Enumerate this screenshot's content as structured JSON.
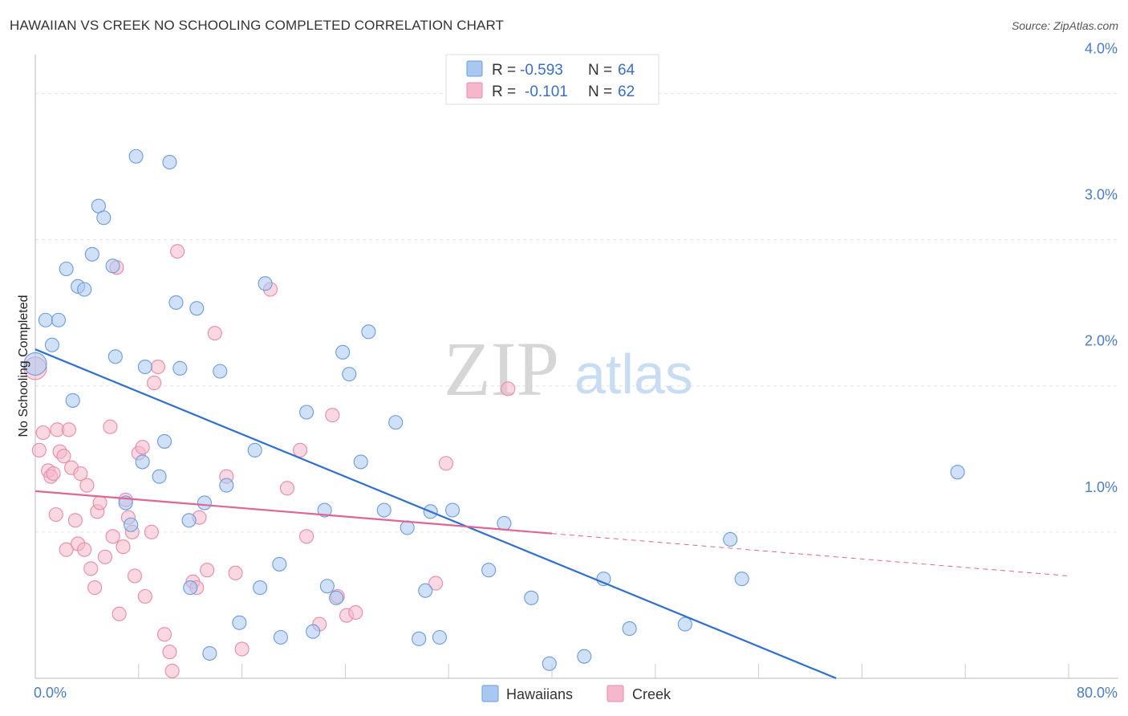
{
  "header": {
    "title": "HAWAIIAN VS CREEK NO SCHOOLING COMPLETED CORRELATION CHART",
    "source": "Source: ZipAtlas.com"
  },
  "watermark": {
    "zip": "ZIP",
    "atlas": "atlas"
  },
  "legend": {
    "rows": [
      {
        "r_label": "R =",
        "r_value": "-0.593",
        "n_label": "N =",
        "n_value": "64",
        "color": "#a9c8f0"
      },
      {
        "r_label": "R =",
        "r_value": "-0.101",
        "n_label": "N =",
        "n_value": "62",
        "color": "#f5b8cb"
      }
    ]
  },
  "bottom_legend": [
    {
      "label": "Hawaiians",
      "color": "#a9c8f0"
    },
    {
      "label": "Creek",
      "color": "#f5b8cb"
    }
  ],
  "chart_data": {
    "type": "scatter",
    "title": "HAWAIIAN VS CREEK NO SCHOOLING COMPLETED CORRELATION CHART",
    "xlabel": "",
    "ylabel": "No Schooling Completed",
    "xlim": [
      0,
      80
    ],
    "ylim": [
      0,
      4.2
    ],
    "x_tick_labels": [
      "0.0%",
      "80.0%"
    ],
    "y_ticks": [
      1.0,
      2.0,
      3.0,
      4.0
    ],
    "y_tick_labels": [
      "1.0%",
      "2.0%",
      "3.0%",
      "4.0%"
    ],
    "grid": "horizontal dashed",
    "legend_position": "top-center",
    "series": [
      {
        "name": "Hawaiians",
        "color": "#6a9be0",
        "fill": "#a9c8f0",
        "trend": {
          "x": [
            0,
            62.0
          ],
          "y": [
            2.25,
            0.0
          ],
          "style": "solid",
          "color": "#2e6fd0"
        },
        "points": [
          [
            0.0,
            2.15
          ],
          [
            0.8,
            2.45
          ],
          [
            1.8,
            2.45
          ],
          [
            1.3,
            2.28
          ],
          [
            2.4,
            2.8
          ],
          [
            3.3,
            2.68
          ],
          [
            3.8,
            2.66
          ],
          [
            4.4,
            2.9
          ],
          [
            4.9,
            3.23
          ],
          [
            5.3,
            3.15
          ],
          [
            6.0,
            2.82
          ],
          [
            6.2,
            2.2
          ],
          [
            7.8,
            3.57
          ],
          [
            10.4,
            3.53
          ],
          [
            2.9,
            1.9
          ],
          [
            8.5,
            2.13
          ],
          [
            9.6,
            1.38
          ],
          [
            10.0,
            1.62
          ],
          [
            10.9,
            2.57
          ],
          [
            11.2,
            2.12
          ],
          [
            12.5,
            2.53
          ],
          [
            8.3,
            1.48
          ],
          [
            7.0,
            1.2
          ],
          [
            7.4,
            1.05
          ],
          [
            11.9,
            1.08
          ],
          [
            13.1,
            1.2
          ],
          [
            14.3,
            2.1
          ],
          [
            14.8,
            1.32
          ],
          [
            17.0,
            1.56
          ],
          [
            17.8,
            2.7
          ],
          [
            18.9,
            0.78
          ],
          [
            17.4,
            0.62
          ],
          [
            15.8,
            0.38
          ],
          [
            12.0,
            0.62
          ],
          [
            13.5,
            0.17
          ],
          [
            19.0,
            0.28
          ],
          [
            21.0,
            1.82
          ],
          [
            21.5,
            0.32
          ],
          [
            22.4,
            1.15
          ],
          [
            22.6,
            0.63
          ],
          [
            23.3,
            0.55
          ],
          [
            23.8,
            2.23
          ],
          [
            24.3,
            2.08
          ],
          [
            25.2,
            1.48
          ],
          [
            25.8,
            2.37
          ],
          [
            27.0,
            1.15
          ],
          [
            27.9,
            1.75
          ],
          [
            28.8,
            1.03
          ],
          [
            29.7,
            0.27
          ],
          [
            30.2,
            0.6
          ],
          [
            30.6,
            1.14
          ],
          [
            31.3,
            0.28
          ],
          [
            32.3,
            1.15
          ],
          [
            35.1,
            0.74
          ],
          [
            36.3,
            1.06
          ],
          [
            38.4,
            0.55
          ],
          [
            39.8,
            0.1
          ],
          [
            42.5,
            0.15
          ],
          [
            44.0,
            0.68
          ],
          [
            46.0,
            0.34
          ],
          [
            50.3,
            0.37
          ],
          [
            53.8,
            0.95
          ],
          [
            54.7,
            0.68
          ],
          [
            71.4,
            1.41
          ]
        ]
      },
      {
        "name": "Creek",
        "color": "#e88aa8",
        "fill": "#f5b8cb",
        "trend": {
          "x": [
            0,
            40.0
          ],
          "y": [
            1.28,
            0.99
          ],
          "style": "solid",
          "color": "#e06592",
          "extension": {
            "x": [
              40.0,
              80.0
            ],
            "y": [
              0.99,
              0.7
            ],
            "style": "dashed"
          }
        },
        "points": [
          [
            0.0,
            2.12
          ],
          [
            0.3,
            1.56
          ],
          [
            0.6,
            1.68
          ],
          [
            1.0,
            1.42
          ],
          [
            1.2,
            1.38
          ],
          [
            1.4,
            1.4
          ],
          [
            1.6,
            1.12
          ],
          [
            1.7,
            1.7
          ],
          [
            1.9,
            1.55
          ],
          [
            2.2,
            1.52
          ],
          [
            2.4,
            0.88
          ],
          [
            2.6,
            1.7
          ],
          [
            2.8,
            1.44
          ],
          [
            3.1,
            1.08
          ],
          [
            3.3,
            0.92
          ],
          [
            3.5,
            1.4
          ],
          [
            3.8,
            0.88
          ],
          [
            4.0,
            1.32
          ],
          [
            4.3,
            0.75
          ],
          [
            4.6,
            0.62
          ],
          [
            4.8,
            1.14
          ],
          [
            5.0,
            1.2
          ],
          [
            5.4,
            0.83
          ],
          [
            5.8,
            1.72
          ],
          [
            6.0,
            0.97
          ],
          [
            6.3,
            2.81
          ],
          [
            6.5,
            0.44
          ],
          [
            6.8,
            0.9
          ],
          [
            7.0,
            1.22
          ],
          [
            7.2,
            1.1
          ],
          [
            7.5,
            1.0
          ],
          [
            7.7,
            0.7
          ],
          [
            8.0,
            1.54
          ],
          [
            8.3,
            1.58
          ],
          [
            8.5,
            0.56
          ],
          [
            9.0,
            1.0
          ],
          [
            9.2,
            2.02
          ],
          [
            9.5,
            2.13
          ],
          [
            10.0,
            0.3
          ],
          [
            10.4,
            0.18
          ],
          [
            10.6,
            0.05
          ],
          [
            11.0,
            2.92
          ],
          [
            12.2,
            0.66
          ],
          [
            12.7,
            1.1
          ],
          [
            13.3,
            0.74
          ],
          [
            13.9,
            2.36
          ],
          [
            14.8,
            1.38
          ],
          [
            15.5,
            0.72
          ],
          [
            16.0,
            0.2
          ],
          [
            18.2,
            2.66
          ],
          [
            19.5,
            1.3
          ],
          [
            20.5,
            1.56
          ],
          [
            21.0,
            0.97
          ],
          [
            22.0,
            0.37
          ],
          [
            23.0,
            1.8
          ],
          [
            23.4,
            0.56
          ],
          [
            24.1,
            0.43
          ],
          [
            24.8,
            0.45
          ],
          [
            31.0,
            0.65
          ],
          [
            31.8,
            1.47
          ],
          [
            36.6,
            1.98
          ],
          [
            12.5,
            0.62
          ]
        ]
      }
    ]
  }
}
